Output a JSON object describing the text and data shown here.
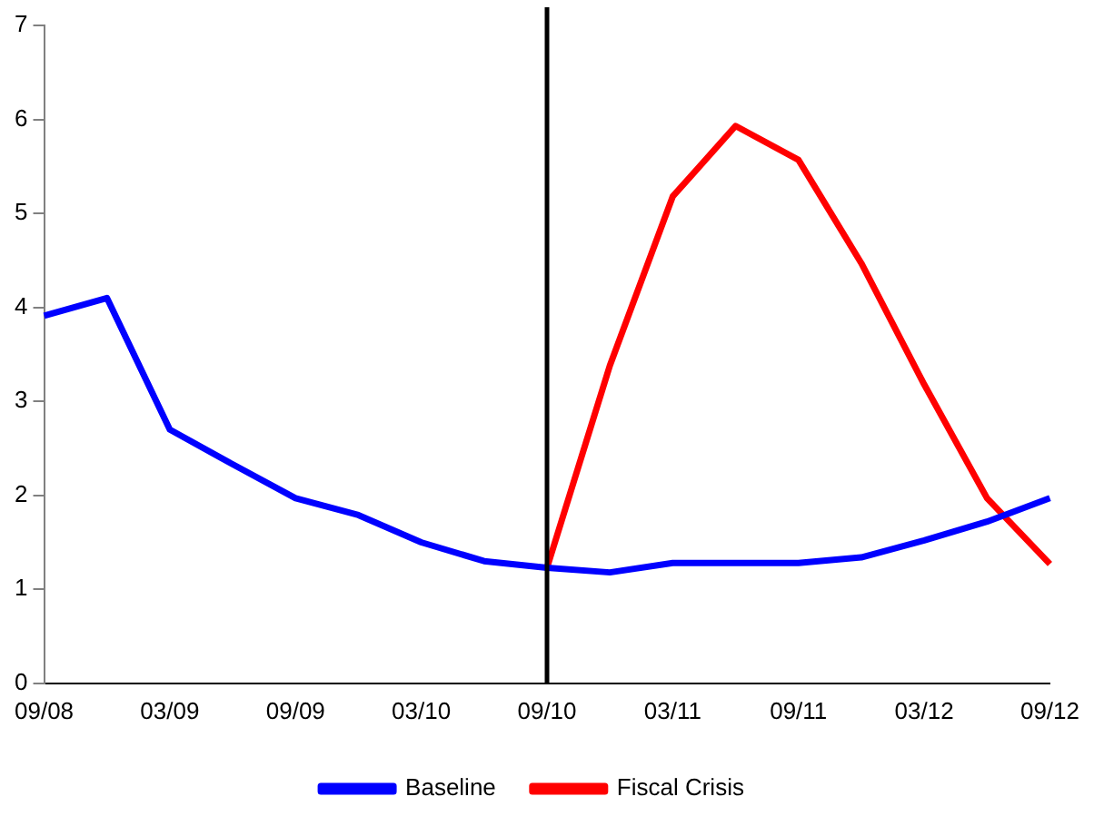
{
  "chart_data": {
    "type": "line",
    "categories": [
      "09/08",
      null,
      "03/09",
      null,
      "09/09",
      null,
      "03/10",
      null,
      "09/10",
      null,
      "03/11",
      null,
      "09/11",
      null,
      "03/12",
      null,
      "09/12"
    ],
    "series": [
      {
        "name": "Baseline",
        "color": "#0000ff",
        "values": [
          3.91,
          4.1,
          2.7,
          2.33,
          1.97,
          1.79,
          1.5,
          1.3,
          1.23,
          1.18,
          1.28,
          1.28,
          1.28,
          1.34,
          1.52,
          1.72,
          1.97
        ]
      },
      {
        "name": "Fiscal Crisis",
        "color": "#ff0000",
        "values": [
          null,
          null,
          null,
          null,
          null,
          null,
          null,
          null,
          1.23,
          3.38,
          5.18,
          5.93,
          5.57,
          4.47,
          3.18,
          1.97,
          1.27
        ]
      }
    ],
    "ylim": [
      0,
      7
    ],
    "yticks": [
      0,
      1,
      2,
      3,
      4,
      5,
      6,
      7
    ],
    "grid": false,
    "legend": "bottom",
    "marker": "none",
    "line_style": "solid",
    "ref_lines": [
      {
        "axis": "x",
        "value": "09/10",
        "color": "#000000"
      }
    ]
  }
}
